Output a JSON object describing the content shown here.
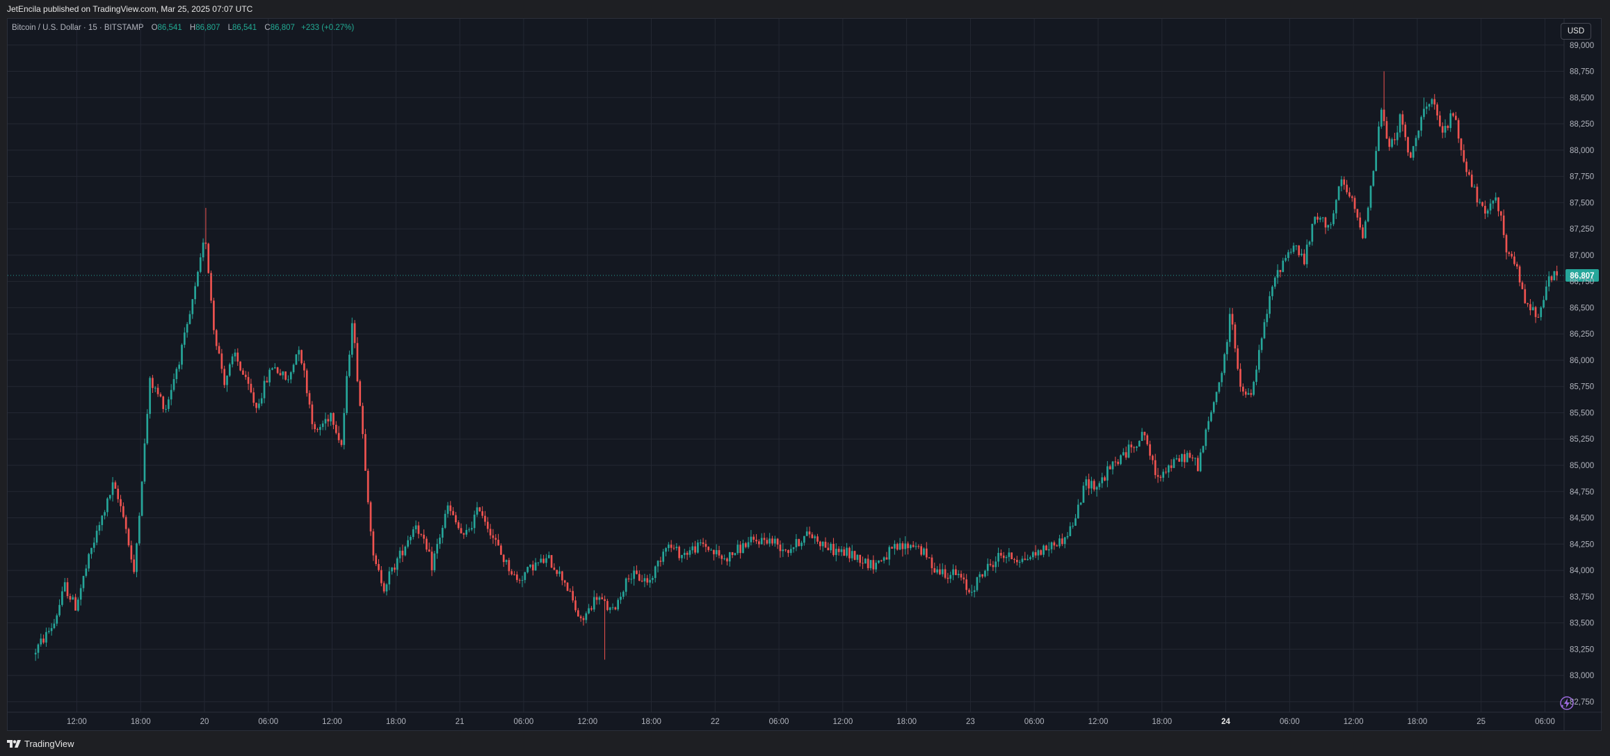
{
  "header": {
    "publish_note": "JetEncila published on TradingView.com, Mar 25, 2025 07:07 UTC"
  },
  "legend": {
    "symbol": "Bitcoin / U.S. Dollar · 15 · BITSTAMP",
    "o_label": "O",
    "o_value": "86,541",
    "h_label": "H",
    "h_value": "86,807",
    "l_label": "L",
    "l_value": "86,541",
    "c_label": "C",
    "c_value": "86,807",
    "change": "+233 (+0.27%)"
  },
  "toolbar": {
    "currency_label": "USD"
  },
  "footer": {
    "brand": "TradingView"
  },
  "colors": {
    "up": "#26a69a",
    "down": "#ef5350",
    "background": "#141821",
    "grid": "#242833",
    "price_tag": "#26a69a"
  },
  "chart_data": {
    "type": "candlestick",
    "title": "Bitcoin / U.S. Dollar · 15 · BITSTAMP",
    "interval": "15",
    "last_price": 86807,
    "last_price_label": "86,807",
    "ylim": [
      82650,
      89250
    ],
    "y_ticks": [
      82750,
      83000,
      83250,
      83500,
      83750,
      84000,
      84250,
      84500,
      84750,
      85000,
      85250,
      85500,
      85750,
      86000,
      86250,
      86500,
      86750,
      87000,
      87250,
      87500,
      87750,
      88000,
      88250,
      88500,
      88750,
      89000
    ],
    "y_tick_labels": [
      "82,750",
      "83,000",
      "83,250",
      "83,500",
      "83,750",
      "84,000",
      "84,250",
      "84,500",
      "84,750",
      "85,000",
      "85,250",
      "85,500",
      "85,750",
      "86,000",
      "86,250",
      "86,500",
      "86,750",
      "87,000",
      "87,250",
      "87,500",
      "87,750",
      "88,000",
      "88,250",
      "88,500",
      "88,750",
      "89,000"
    ],
    "x_range_hours": [
      -18.5,
      127.8
    ],
    "x_ticks": [
      {
        "hour": -12,
        "label": "12:00",
        "bold": false
      },
      {
        "hour": -6,
        "label": "18:00",
        "bold": false
      },
      {
        "hour": 0,
        "label": "20",
        "bold": false
      },
      {
        "hour": 6,
        "label": "06:00",
        "bold": false
      },
      {
        "hour": 12,
        "label": "12:00",
        "bold": false
      },
      {
        "hour": 18,
        "label": "18:00",
        "bold": false
      },
      {
        "hour": 24,
        "label": "21",
        "bold": false
      },
      {
        "hour": 30,
        "label": "06:00",
        "bold": false
      },
      {
        "hour": 36,
        "label": "12:00",
        "bold": false
      },
      {
        "hour": 42,
        "label": "18:00",
        "bold": false
      },
      {
        "hour": 48,
        "label": "22",
        "bold": false
      },
      {
        "hour": 54,
        "label": "06:00",
        "bold": false
      },
      {
        "hour": 60,
        "label": "12:00",
        "bold": false
      },
      {
        "hour": 66,
        "label": "18:00",
        "bold": false
      },
      {
        "hour": 72,
        "label": "23",
        "bold": false
      },
      {
        "hour": 78,
        "label": "06:00",
        "bold": false
      },
      {
        "hour": 84,
        "label": "12:00",
        "bold": false
      },
      {
        "hour": 90,
        "label": "18:00",
        "bold": false
      },
      {
        "hour": 96,
        "label": "24",
        "bold": true
      },
      {
        "hour": 102,
        "label": "06:00",
        "bold": false
      },
      {
        "hour": 108,
        "label": "12:00",
        "bold": false
      },
      {
        "hour": 114,
        "label": "18:00",
        "bold": false
      },
      {
        "hour": 120,
        "label": "25",
        "bold": false
      },
      {
        "hour": 126,
        "label": "06:00",
        "bold": false
      }
    ],
    "price_path": [
      {
        "h": -16.0,
        "p": 83200
      },
      {
        "h": -14.0,
        "p": 83500
      },
      {
        "h": -13.0,
        "p": 83850
      },
      {
        "h": -12.0,
        "p": 83650
      },
      {
        "h": -10.5,
        "p": 84200
      },
      {
        "h": -8.5,
        "p": 84800
      },
      {
        "h": -7.5,
        "p": 84550
      },
      {
        "h": -6.5,
        "p": 83950
      },
      {
        "h": -5.0,
        "p": 85800
      },
      {
        "h": -3.5,
        "p": 85550
      },
      {
        "h": -1.5,
        "p": 86300
      },
      {
        "h": -0.5,
        "p": 86800
      },
      {
        "h": 0.2,
        "p": 87200
      },
      {
        "h": 1.0,
        "p": 86300
      },
      {
        "h": 2.0,
        "p": 85800
      },
      {
        "h": 3.0,
        "p": 86050
      },
      {
        "h": 5.0,
        "p": 85550
      },
      {
        "h": 6.5,
        "p": 85950
      },
      {
        "h": 8.0,
        "p": 85800
      },
      {
        "h": 9.0,
        "p": 86150
      },
      {
        "h": 10.5,
        "p": 85300
      },
      {
        "h": 12.0,
        "p": 85500
      },
      {
        "h": 13.0,
        "p": 85200
      },
      {
        "h": 14.0,
        "p": 86400
      },
      {
        "h": 15.0,
        "p": 85300
      },
      {
        "h": 16.0,
        "p": 84100
      },
      {
        "h": 17.0,
        "p": 83850
      },
      {
        "h": 18.5,
        "p": 84150
      },
      {
        "h": 20.0,
        "p": 84450
      },
      {
        "h": 21.5,
        "p": 84050
      },
      {
        "h": 23.0,
        "p": 84600
      },
      {
        "h": 24.5,
        "p": 84300
      },
      {
        "h": 26.0,
        "p": 84600
      },
      {
        "h": 28.0,
        "p": 84150
      },
      {
        "h": 29.5,
        "p": 83900
      },
      {
        "h": 31.0,
        "p": 84050
      },
      {
        "h": 32.5,
        "p": 84100
      },
      {
        "h": 34.0,
        "p": 83900
      },
      {
        "h": 35.5,
        "p": 83500
      },
      {
        "h": 37.0,
        "p": 83750
      },
      {
        "h": 38.5,
        "p": 83600
      },
      {
        "h": 40.0,
        "p": 83950
      },
      {
        "h": 42.0,
        "p": 83900
      },
      {
        "h": 43.5,
        "p": 84250
      },
      {
        "h": 45.0,
        "p": 84150
      },
      {
        "h": 47.0,
        "p": 84250
      },
      {
        "h": 49.0,
        "p": 84100
      },
      {
        "h": 51.0,
        "p": 84250
      },
      {
        "h": 53.0,
        "p": 84300
      },
      {
        "h": 55.0,
        "p": 84200
      },
      {
        "h": 57.0,
        "p": 84350
      },
      {
        "h": 59.0,
        "p": 84200
      },
      {
        "h": 61.0,
        "p": 84150
      },
      {
        "h": 63.0,
        "p": 84050
      },
      {
        "h": 65.0,
        "p": 84200
      },
      {
        "h": 67.0,
        "p": 84250
      },
      {
        "h": 69.0,
        "p": 84000
      },
      {
        "h": 71.0,
        "p": 83950
      },
      {
        "h": 72.0,
        "p": 83800
      },
      {
        "h": 73.5,
        "p": 84000
      },
      {
        "h": 75.0,
        "p": 84150
      },
      {
        "h": 77.0,
        "p": 84100
      },
      {
        "h": 79.0,
        "p": 84200
      },
      {
        "h": 81.0,
        "p": 84300
      },
      {
        "h": 82.0,
        "p": 84500
      },
      {
        "h": 83.0,
        "p": 84850
      },
      {
        "h": 84.0,
        "p": 84800
      },
      {
        "h": 85.5,
        "p": 85000
      },
      {
        "h": 87.0,
        "p": 85150
      },
      {
        "h": 88.5,
        "p": 85300
      },
      {
        "h": 89.5,
        "p": 84900
      },
      {
        "h": 91.0,
        "p": 85000
      },
      {
        "h": 92.5,
        "p": 85100
      },
      {
        "h": 93.5,
        "p": 85000
      },
      {
        "h": 95.0,
        "p": 85600
      },
      {
        "h": 96.0,
        "p": 86000
      },
      {
        "h": 96.6,
        "p": 86500
      },
      {
        "h": 97.5,
        "p": 85700
      },
      {
        "h": 98.5,
        "p": 85650
      },
      {
        "h": 99.5,
        "p": 86200
      },
      {
        "h": 100.5,
        "p": 86700
      },
      {
        "h": 101.5,
        "p": 86950
      },
      {
        "h": 102.5,
        "p": 87100
      },
      {
        "h": 103.5,
        "p": 86950
      },
      {
        "h": 104.5,
        "p": 87350
      },
      {
        "h": 106.0,
        "p": 87300
      },
      {
        "h": 107.0,
        "p": 87700
      },
      {
        "h": 108.0,
        "p": 87500
      },
      {
        "h": 109.0,
        "p": 87200
      },
      {
        "h": 110.0,
        "p": 87800
      },
      {
        "h": 110.7,
        "p": 88400
      },
      {
        "h": 111.5,
        "p": 88000
      },
      {
        "h": 112.5,
        "p": 88300
      },
      {
        "h": 113.5,
        "p": 87900
      },
      {
        "h": 114.5,
        "p": 88350
      },
      {
        "h": 115.5,
        "p": 88450
      },
      {
        "h": 116.5,
        "p": 88150
      },
      {
        "h": 117.5,
        "p": 88350
      },
      {
        "h": 118.5,
        "p": 87900
      },
      {
        "h": 119.5,
        "p": 87600
      },
      {
        "h": 120.5,
        "p": 87350
      },
      {
        "h": 121.5,
        "p": 87600
      },
      {
        "h": 122.5,
        "p": 87050
      },
      {
        "h": 123.5,
        "p": 86850
      },
      {
        "h": 124.5,
        "p": 86500
      },
      {
        "h": 125.5,
        "p": 86450
      },
      {
        "h": 126.2,
        "p": 86700
      },
      {
        "h": 127.0,
        "p": 86807
      }
    ],
    "extremes": [
      {
        "h": 0.1,
        "high": 87450
      },
      {
        "h": 110.7,
        "high": 88750
      },
      {
        "h": 37.5,
        "low": 83150
      },
      {
        "h": 114.5,
        "high": 88500
      }
    ]
  }
}
